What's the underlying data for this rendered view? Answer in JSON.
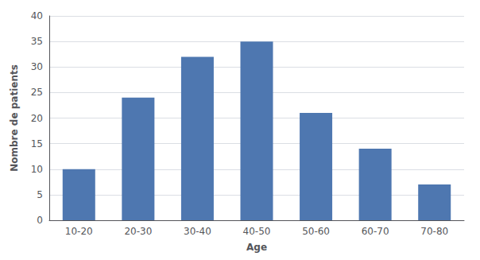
{
  "chart_data": {
    "type": "bar",
    "xlabel": "Age",
    "ylabel": "Nombre de patients",
    "categories": [
      "10-20",
      "20-30",
      "30-40",
      "40-50",
      "50-60",
      "60-70",
      "70-80"
    ],
    "values": [
      10,
      24,
      32,
      35,
      21,
      14,
      7
    ],
    "color": "#4E77B0",
    "ylim": [
      0,
      40
    ],
    "yticks": [
      0,
      5,
      10,
      15,
      20,
      25,
      30,
      35,
      40
    ],
    "grid": true
  }
}
